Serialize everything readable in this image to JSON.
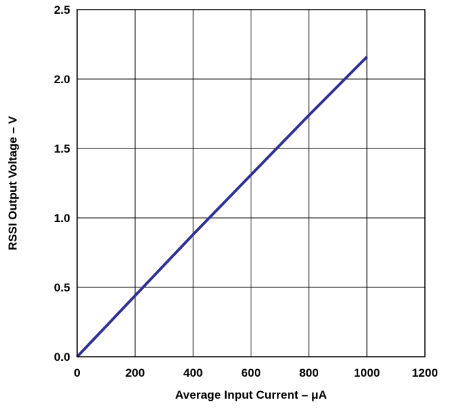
{
  "chart_data": {
    "type": "line",
    "title": "",
    "xlabel": "Average Input Current – μA",
    "ylabel": "RSSI Output Voltage – V",
    "xlim": [
      0,
      1200
    ],
    "ylim": [
      0,
      2.5
    ],
    "xticks": [
      0,
      200,
      400,
      600,
      800,
      1000,
      1200
    ],
    "yticks": [
      0.0,
      0.5,
      1.0,
      1.5,
      2.0,
      2.5
    ],
    "xtick_labels": [
      "0",
      "200",
      "400",
      "600",
      "800",
      "1000",
      "1200"
    ],
    "ytick_labels": [
      "0.0",
      "0.5",
      "1.0",
      "1.5",
      "2.0",
      "2.5"
    ],
    "grid": true,
    "series": [
      {
        "color": "#2e3192",
        "x": [
          0,
          200,
          400,
          600,
          800,
          1000
        ],
        "y": [
          0.0,
          0.44,
          0.88,
          1.31,
          1.74,
          2.16
        ]
      }
    ]
  }
}
